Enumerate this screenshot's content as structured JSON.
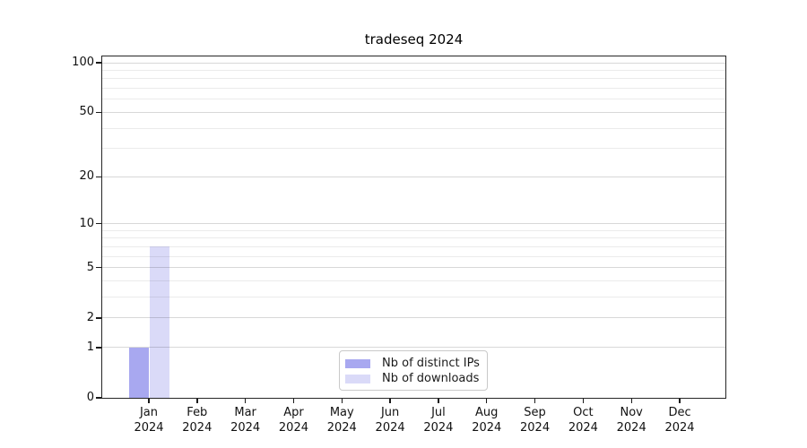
{
  "chart_data": {
    "type": "bar",
    "title": "tradeseq 2024",
    "categories": [
      {
        "month": "Jan",
        "year": "2024"
      },
      {
        "month": "Feb",
        "year": "2024"
      },
      {
        "month": "Mar",
        "year": "2024"
      },
      {
        "month": "Apr",
        "year": "2024"
      },
      {
        "month": "May",
        "year": "2024"
      },
      {
        "month": "Jun",
        "year": "2024"
      },
      {
        "month": "Jul",
        "year": "2024"
      },
      {
        "month": "Aug",
        "year": "2024"
      },
      {
        "month": "Sep",
        "year": "2024"
      },
      {
        "month": "Oct",
        "year": "2024"
      },
      {
        "month": "Nov",
        "year": "2024"
      },
      {
        "month": "Dec",
        "year": "2024"
      }
    ],
    "series": [
      {
        "name": "Nb of distinct IPs",
        "color": "#a8a8f0",
        "values": [
          1,
          0,
          0,
          0,
          0,
          0,
          0,
          0,
          0,
          0,
          0,
          0
        ]
      },
      {
        "name": "Nb of downloads",
        "color": "#dadaf8",
        "values": [
          7,
          0,
          0,
          0,
          0,
          0,
          0,
          0,
          0,
          0,
          0,
          0
        ]
      }
    ],
    "y_axis": {
      "scale": "log10(1+v)",
      "ticks": [
        0,
        1,
        2,
        5,
        10,
        20,
        50,
        100
      ],
      "gridlines": [
        1,
        2,
        3,
        4,
        5,
        6,
        7,
        8,
        9,
        10,
        20,
        30,
        40,
        50,
        60,
        70,
        80,
        90,
        100
      ],
      "range": [
        0,
        100
      ]
    },
    "grid": "on",
    "legend_position": "bottom-center"
  },
  "colors": {
    "bar_distinct_ips": "#a8a8f0",
    "bar_downloads": "#dadaf8",
    "major_grid": "#d8d8d8",
    "minor_grid": "#ebebeb",
    "axis": "#1a1a1a",
    "legend_border": "#c9c9c9"
  }
}
